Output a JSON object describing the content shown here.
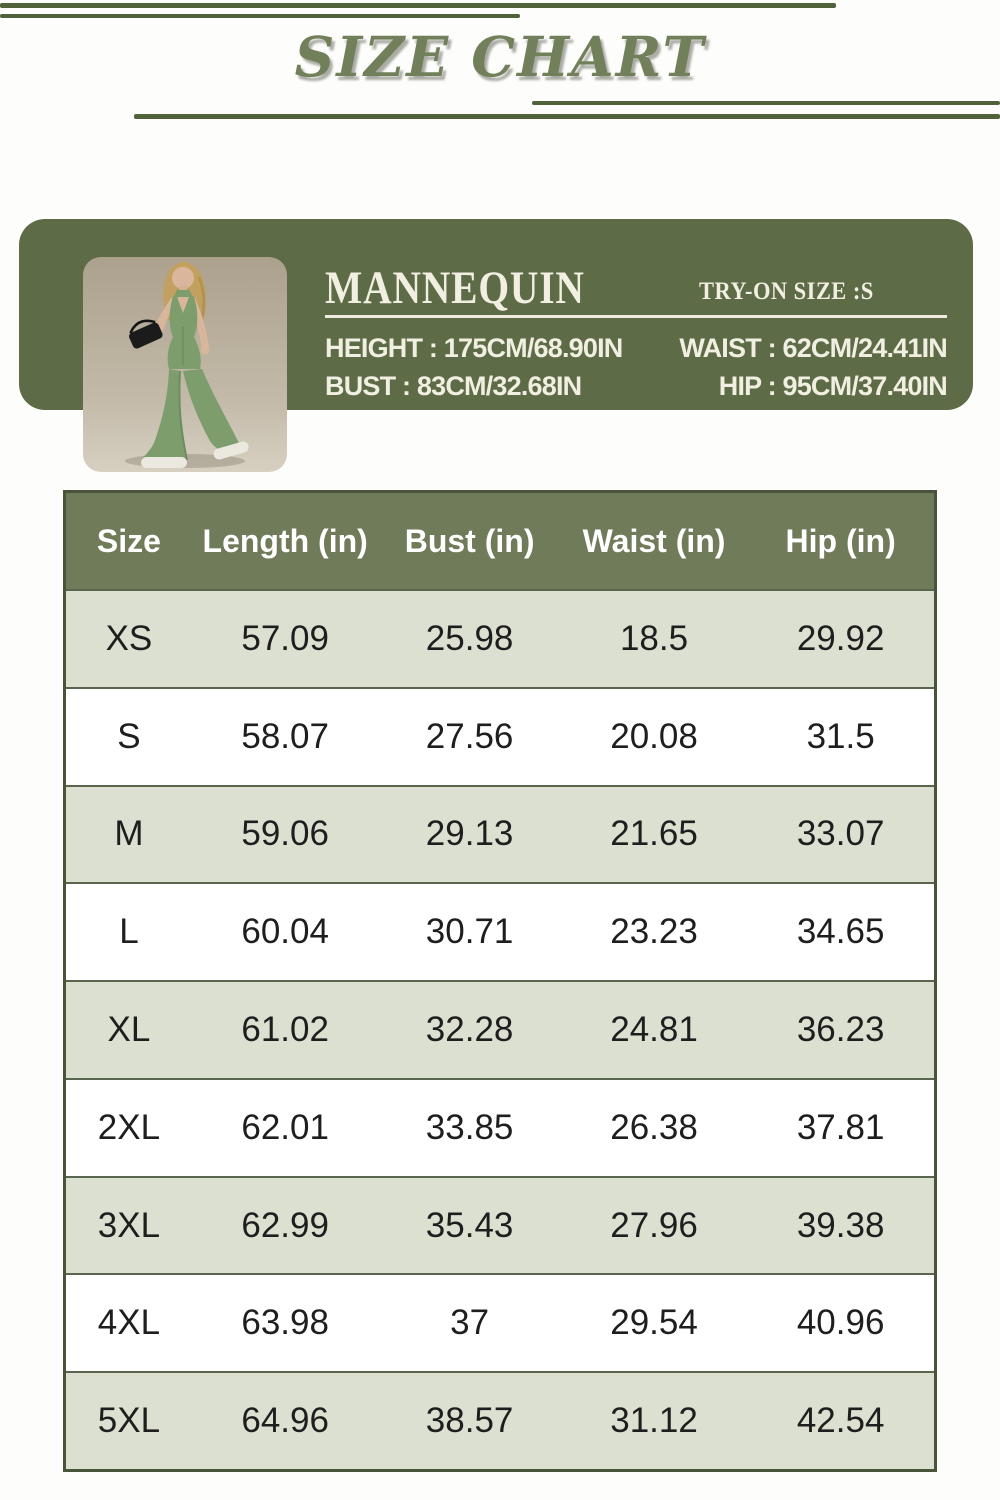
{
  "page": {
    "title": "SIZE CHART"
  },
  "banner": {
    "heading": "MANNEQUIN",
    "try_on_label": "TRY-ON SIZE :S",
    "height_line": "HEIGHT : 175CM/68.90IN",
    "waist_line": "WAIST : 62CM/24.41IN",
    "bust_line": "BUST : 83CM/32.68IN",
    "hip_line": "HIP : 95CM/37.40IN",
    "photo_description": "Model wearing sage green halter flared jumpsuit holding a black clutch"
  },
  "chart_data": {
    "type": "table",
    "title": "SIZE CHART",
    "columns": [
      "Size",
      "Length (in)",
      "Bust (in)",
      "Waist (in)",
      "Hip (in)"
    ],
    "rows": [
      [
        "XS",
        57.09,
        25.98,
        18.5,
        29.92
      ],
      [
        "S",
        58.07,
        27.56,
        20.08,
        31.5
      ],
      [
        "M",
        59.06,
        29.13,
        21.65,
        33.07
      ],
      [
        "L",
        60.04,
        30.71,
        23.23,
        34.65
      ],
      [
        "XL",
        61.02,
        32.28,
        24.81,
        36.23
      ],
      [
        "2XL",
        62.01,
        33.85,
        26.38,
        37.81
      ],
      [
        "3XL",
        62.99,
        35.43,
        27.96,
        39.38
      ],
      [
        "4XL",
        63.98,
        37,
        29.54,
        40.96
      ],
      [
        "5XL",
        64.96,
        38.57,
        31.12,
        42.54
      ]
    ]
  },
  "colors": {
    "banner_green": "#5d6b46",
    "table_header_green": "#6f7b59",
    "row_sage": "#dce0d1",
    "decor_line_green": "#506239",
    "title_green": "#71805a",
    "cream_text": "#f1efe1"
  }
}
